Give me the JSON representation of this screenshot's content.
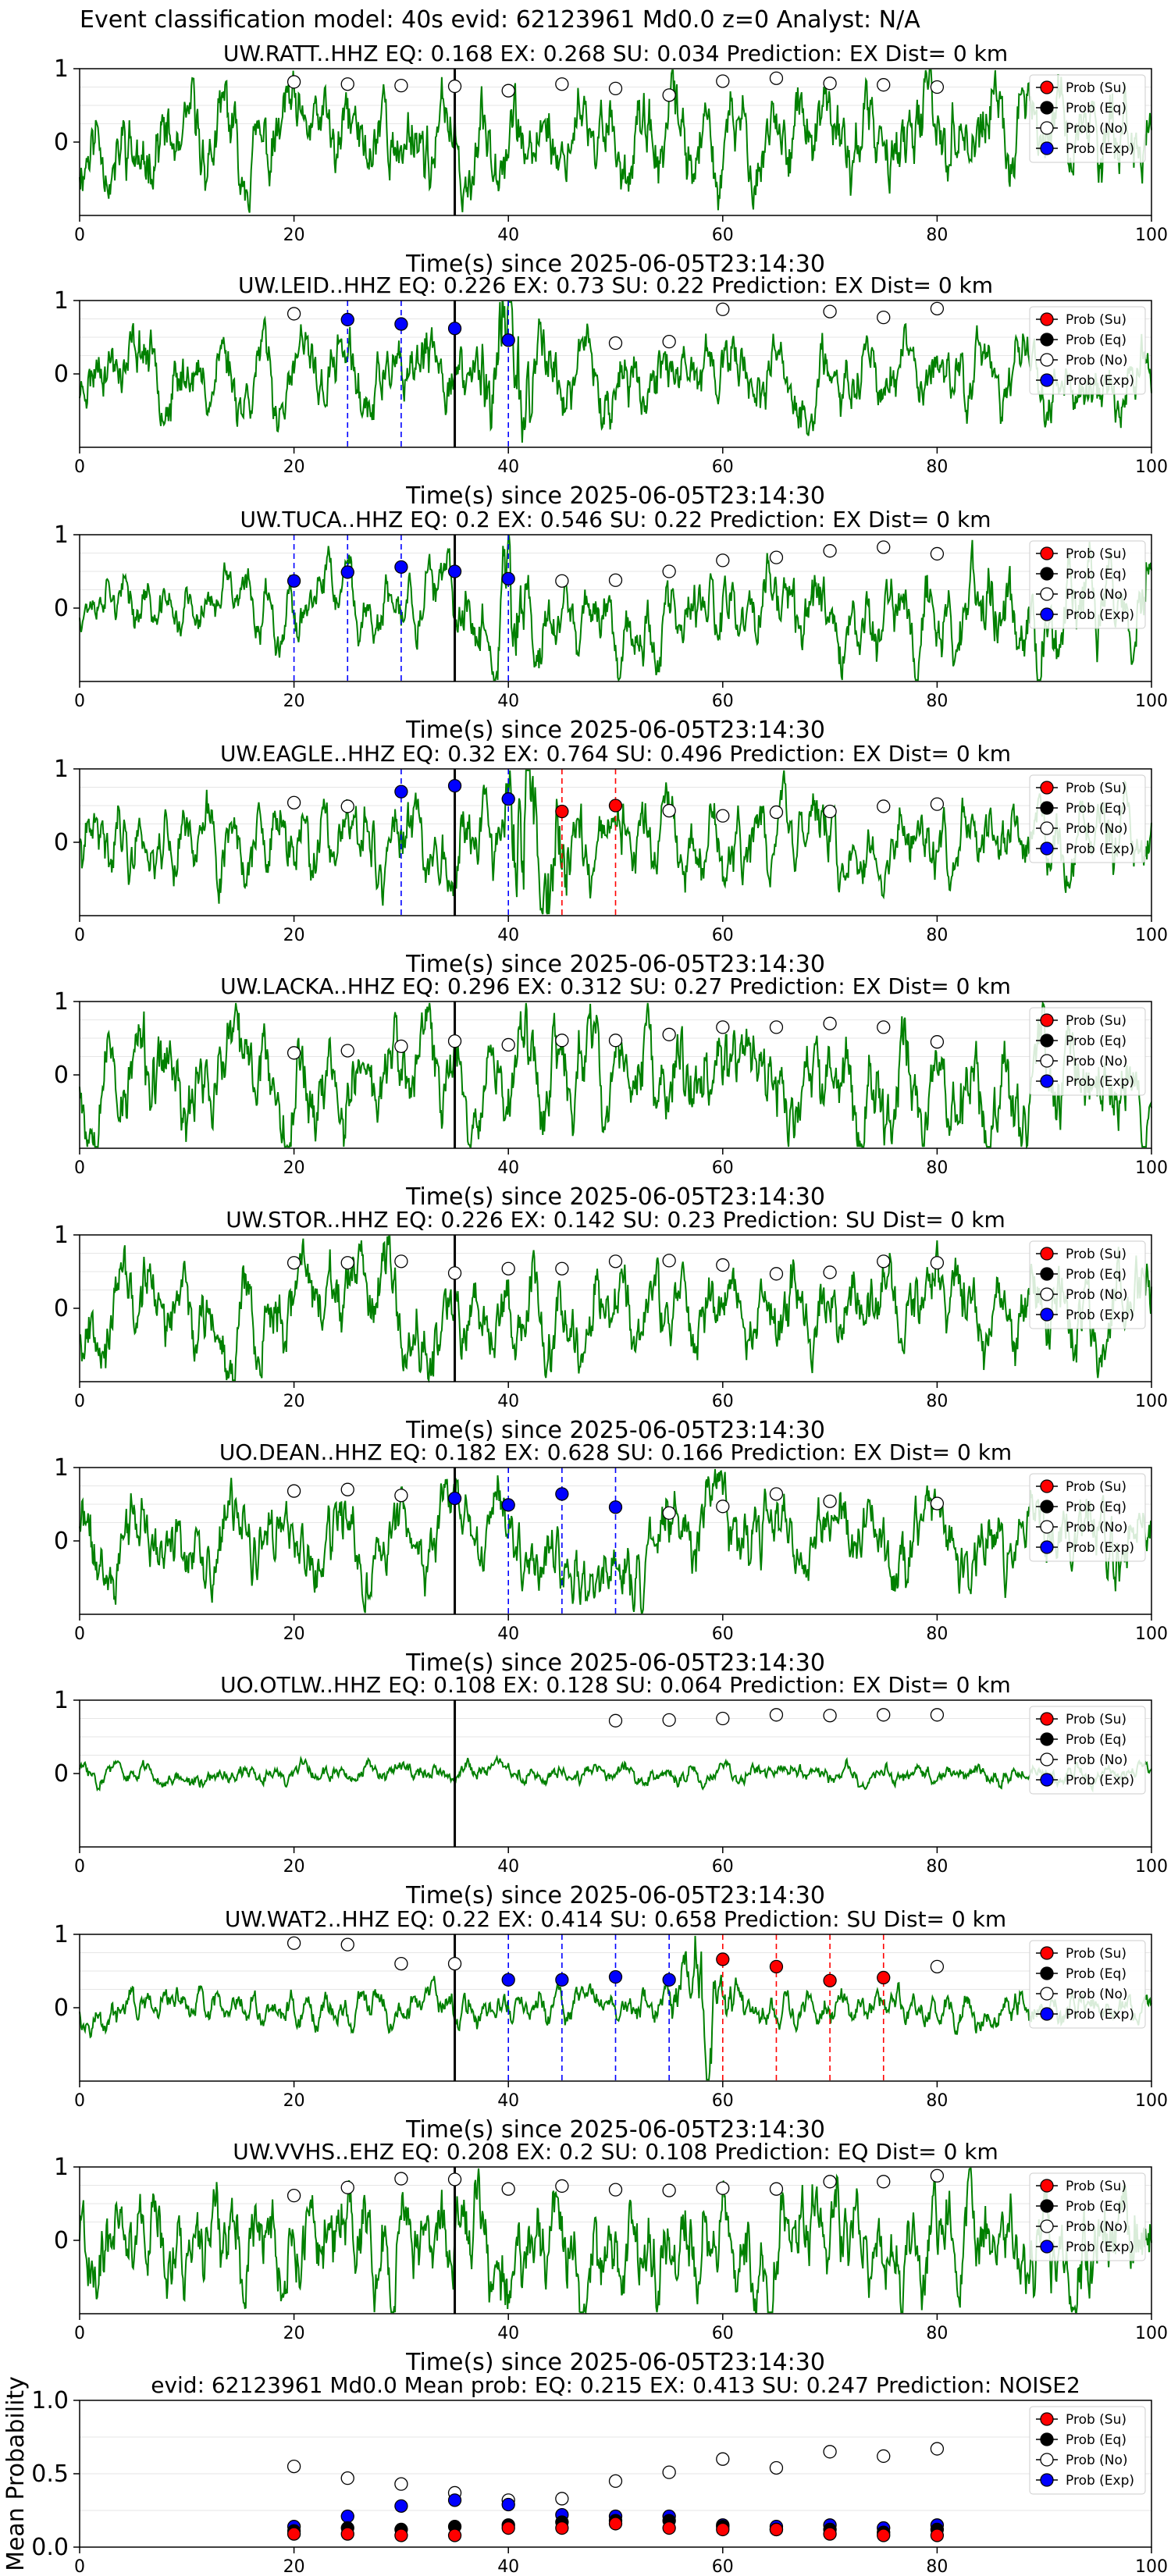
{
  "suptitle": "Event classification model: 40s evid: 62123961 Md0.0 z=0 Analyst: N/A",
  "colors": {
    "su": "#ff0000",
    "eq": "#000000",
    "no": "#ffffff",
    "exp": "#0000ff",
    "wave": "#008000",
    "pick": "#000000"
  },
  "legend_labels": [
    "Prob (Su)",
    "Prob (Eq)",
    "Prob (No)",
    "Prob (Exp)"
  ],
  "xlabel": "Time(s) since 2025-06-05T23:14:30",
  "chart_data": [
    {
      "type": "scatter",
      "title": "UW.RATT..HHZ   EQ: 0.168  EX: 0.268  SU: 0.034   Prediction: EX    Dist= 0 km",
      "xlim": [
        0,
        100
      ],
      "ylim": [
        -1,
        1
      ],
      "xticks": [
        0,
        20,
        40,
        60,
        80,
        100
      ],
      "yticks": [
        0,
        1
      ],
      "xlabel": "Time(s) since 2025-06-05T23:14:30",
      "pick_time": 35,
      "wave_amp": 0.55,
      "wave_seed": 11,
      "wave_env": "flat",
      "wave_freq": 1.0,
      "series": [
        {
          "name": "Prob (No)",
          "class": "no",
          "x": [
            20,
            25,
            30,
            35,
            40,
            45,
            50,
            55,
            60,
            65,
            70,
            75,
            80
          ],
          "y": [
            0.82,
            0.79,
            0.77,
            0.76,
            0.7,
            0.79,
            0.73,
            0.64,
            0.83,
            0.87,
            0.8,
            0.78,
            0.75
          ]
        }
      ],
      "markers": []
    },
    {
      "type": "scatter",
      "title": "UW.LEID..HHZ   EQ: 0.226  EX: 0.73  SU: 0.22   Prediction: EX    Dist= 0 km",
      "xlim": [
        0,
        100
      ],
      "ylim": [
        -1,
        1
      ],
      "xticks": [
        0,
        20,
        40,
        60,
        80,
        100
      ],
      "yticks": [
        0,
        1
      ],
      "xlabel": "Time(s) since 2025-06-05T23:14:30",
      "pick_time": 35,
      "wave_amp": 0.45,
      "wave_seed": 23,
      "wave_env": "burst40",
      "wave_freq": 0.8,
      "series": [
        {
          "name": "Prob (No)",
          "class": "no",
          "x": [
            20,
            50,
            55,
            60,
            70,
            75,
            80
          ],
          "y": [
            0.82,
            0.42,
            0.44,
            0.88,
            0.85,
            0.77,
            0.89
          ]
        },
        {
          "name": "Prob (Exp)",
          "class": "exp",
          "x": [
            25,
            30,
            35,
            40
          ],
          "y": [
            0.74,
            0.68,
            0.62,
            0.46
          ]
        }
      ],
      "markers": [
        {
          "x": 25,
          "class": "exp"
        },
        {
          "x": 30,
          "class": "exp"
        },
        {
          "x": 40,
          "class": "exp"
        }
      ]
    },
    {
      "type": "scatter",
      "title": "UW.TUCA..HHZ   EQ: 0.2  EX: 0.546  SU: 0.22   Prediction: EX    Dist= 0 km",
      "xlim": [
        0,
        100
      ],
      "ylim": [
        -1,
        1
      ],
      "xticks": [
        0,
        20,
        40,
        60,
        80,
        100
      ],
      "yticks": [
        0,
        1
      ],
      "xlabel": "Time(s) since 2025-06-05T23:14:30",
      "pick_time": 35,
      "wave_amp": 0.35,
      "wave_seed": 37,
      "wave_env": "grow",
      "wave_freq": 1.6,
      "series": [
        {
          "name": "Prob (No)",
          "class": "no",
          "x": [
            45,
            50,
            55,
            60,
            65,
            70,
            75,
            80
          ],
          "y": [
            0.37,
            0.38,
            0.5,
            0.65,
            0.69,
            0.78,
            0.83,
            0.74
          ]
        },
        {
          "name": "Prob (Exp)",
          "class": "exp",
          "x": [
            20,
            25,
            30,
            35,
            40
          ],
          "y": [
            0.37,
            0.49,
            0.56,
            0.5,
            0.4
          ]
        }
      ],
      "markers": [
        {
          "x": 20,
          "class": "exp"
        },
        {
          "x": 25,
          "class": "exp"
        },
        {
          "x": 30,
          "class": "exp"
        },
        {
          "x": 40,
          "class": "exp"
        }
      ]
    },
    {
      "type": "scatter",
      "title": "UW.EAGLE..HHZ   EQ: 0.32  EX: 0.764  SU: 0.496   Prediction: EX    Dist= 0 km",
      "xlim": [
        0,
        100
      ],
      "ylim": [
        -1,
        1
      ],
      "xticks": [
        0,
        20,
        40,
        60,
        80,
        100
      ],
      "yticks": [
        0,
        1
      ],
      "xlabel": "Time(s) since 2025-06-05T23:14:30",
      "pick_time": 35,
      "wave_amp": 0.45,
      "wave_seed": 41,
      "wave_env": "burst44",
      "wave_freq": 1.4,
      "series": [
        {
          "name": "Prob (No)",
          "class": "no",
          "x": [
            20,
            25,
            55,
            60,
            65,
            70,
            75,
            80
          ],
          "y": [
            0.54,
            0.49,
            0.43,
            0.36,
            0.41,
            0.42,
            0.49,
            0.52
          ]
        },
        {
          "name": "Prob (Exp)",
          "class": "exp",
          "x": [
            30,
            35,
            40
          ],
          "y": [
            0.69,
            0.77,
            0.59
          ]
        },
        {
          "name": "Prob (Su)",
          "class": "su",
          "x": [
            45,
            50
          ],
          "y": [
            0.42,
            0.5
          ]
        }
      ],
      "markers": [
        {
          "x": 30,
          "class": "exp"
        },
        {
          "x": 40,
          "class": "exp"
        },
        {
          "x": 45,
          "class": "su"
        },
        {
          "x": 50,
          "class": "su"
        }
      ]
    },
    {
      "type": "scatter",
      "title": "UW.LACKA..HHZ   EQ: 0.296  EX: 0.312  SU: 0.27   Prediction: EX    Dist= 0 km",
      "xlim": [
        0,
        100
      ],
      "ylim": [
        -1,
        1
      ],
      "xticks": [
        0,
        20,
        40,
        60,
        80,
        100
      ],
      "yticks": [
        0,
        1
      ],
      "xlabel": "Time(s) since 2025-06-05T23:14:30",
      "pick_time": 35,
      "wave_amp": 0.6,
      "wave_seed": 53,
      "wave_env": "flat",
      "wave_freq": 1.0,
      "series": [
        {
          "name": "Prob (No)",
          "class": "no",
          "x": [
            20,
            25,
            30,
            35,
            40,
            45,
            50,
            55,
            60,
            65,
            70,
            75,
            80
          ],
          "y": [
            0.3,
            0.33,
            0.39,
            0.46,
            0.41,
            0.47,
            0.47,
            0.55,
            0.65,
            0.65,
            0.7,
            0.65,
            0.45
          ]
        }
      ],
      "markers": []
    },
    {
      "type": "scatter",
      "title": "UW.STOR..HHZ   EQ: 0.226  EX: 0.142  SU: 0.23   Prediction: SU    Dist= 0 km",
      "xlim": [
        0,
        100
      ],
      "ylim": [
        -1,
        1
      ],
      "xticks": [
        0,
        20,
        40,
        60,
        80,
        100
      ],
      "yticks": [
        0,
        1
      ],
      "xlabel": "Time(s) since 2025-06-05T23:14:30",
      "pick_time": 35,
      "wave_amp": 0.5,
      "wave_seed": 67,
      "wave_env": "flat",
      "wave_freq": 1.1,
      "series": [
        {
          "name": "Prob (No)",
          "class": "no",
          "x": [
            20,
            25,
            30,
            35,
            40,
            45,
            50,
            55,
            60,
            65,
            70,
            75,
            80
          ],
          "y": [
            0.62,
            0.62,
            0.64,
            0.48,
            0.54,
            0.54,
            0.64,
            0.65,
            0.59,
            0.47,
            0.49,
            0.64,
            0.62
          ]
        }
      ],
      "markers": []
    },
    {
      "type": "scatter",
      "title": "UO.DEAN..HHZ   EQ: 0.182  EX: 0.628  SU: 0.166   Prediction: EX    Dist= 0 km",
      "xlim": [
        0,
        100
      ],
      "ylim": [
        -1,
        1
      ],
      "xticks": [
        0,
        20,
        40,
        60,
        80,
        100
      ],
      "yticks": [
        0,
        1
      ],
      "xlabel": "Time(s) since 2025-06-05T23:14:30",
      "pick_time": 35,
      "wave_amp": 0.5,
      "wave_seed": 71,
      "wave_env": "flat",
      "wave_freq": 0.6,
      "series": [
        {
          "name": "Prob (No)",
          "class": "no",
          "x": [
            20,
            25,
            30,
            55,
            60,
            65,
            70,
            80
          ],
          "y": [
            0.68,
            0.7,
            0.62,
            0.38,
            0.47,
            0.64,
            0.54,
            0.51
          ]
        },
        {
          "name": "Prob (Exp)",
          "class": "exp",
          "x": [
            35,
            40,
            45,
            50
          ],
          "y": [
            0.58,
            0.49,
            0.64,
            0.46
          ]
        }
      ],
      "markers": [
        {
          "x": 40,
          "class": "exp"
        },
        {
          "x": 45,
          "class": "exp"
        },
        {
          "x": 50,
          "class": "exp"
        }
      ]
    },
    {
      "type": "scatter",
      "title": "UO.OTLW..HHZ   EQ: 0.108  EX: 0.128  SU: 0.064   Prediction: EX    Dist= 0 km",
      "xlim": [
        0,
        100
      ],
      "ylim": [
        -1,
        1
      ],
      "xticks": [
        0,
        20,
        40,
        60,
        80,
        100
      ],
      "yticks": [
        0,
        1
      ],
      "xlabel": "Time(s) since 2025-06-05T23:14:30",
      "pick_time": 35,
      "wave_amp": 0.12,
      "wave_seed": 83,
      "wave_env": "flat",
      "wave_freq": 1.0,
      "series": [
        {
          "name": "Prob (No)",
          "class": "no",
          "x": [
            50,
            55,
            60,
            65,
            70,
            75,
            80
          ],
          "y": [
            0.72,
            0.73,
            0.75,
            0.8,
            0.79,
            0.8,
            0.8
          ]
        }
      ],
      "markers": []
    },
    {
      "type": "scatter",
      "title": "UW.WAT2..HHZ   EQ: 0.22  EX: 0.414  SU: 0.658   Prediction: SU    Dist= 0 km",
      "xlim": [
        0,
        100
      ],
      "ylim": [
        -1,
        1
      ],
      "xticks": [
        0,
        20,
        40,
        60,
        80,
        100
      ],
      "yticks": [
        0,
        1
      ],
      "xlabel": "Time(s) since 2025-06-05T23:14:30",
      "pick_time": 35,
      "wave_amp": 0.2,
      "wave_seed": 97,
      "wave_env": "burst58",
      "wave_freq": 1.8,
      "series": [
        {
          "name": "Prob (No)",
          "class": "no",
          "x": [
            20,
            25,
            30,
            35,
            80
          ],
          "y": [
            0.88,
            0.86,
            0.6,
            0.6,
            0.56
          ]
        },
        {
          "name": "Prob (Exp)",
          "class": "exp",
          "x": [
            40,
            45,
            50,
            55
          ],
          "y": [
            0.38,
            0.38,
            0.42,
            0.38
          ]
        },
        {
          "name": "Prob (Su)",
          "class": "su",
          "x": [
            60,
            65,
            70,
            75
          ],
          "y": [
            0.66,
            0.56,
            0.37,
            0.41
          ]
        }
      ],
      "markers": [
        {
          "x": 40,
          "class": "exp"
        },
        {
          "x": 45,
          "class": "exp"
        },
        {
          "x": 50,
          "class": "exp"
        },
        {
          "x": 55,
          "class": "exp"
        },
        {
          "x": 60,
          "class": "su"
        },
        {
          "x": 65,
          "class": "su"
        },
        {
          "x": 70,
          "class": "su"
        },
        {
          "x": 75,
          "class": "su"
        }
      ]
    },
    {
      "type": "scatter",
      "title": "UW.VVHS..EHZ   EQ: 0.208  EX: 0.2  SU: 0.108   Prediction: EQ    Dist= 0 km",
      "xlim": [
        0,
        100
      ],
      "ylim": [
        -1,
        1
      ],
      "xticks": [
        0,
        20,
        40,
        60,
        80,
        100
      ],
      "yticks": [
        0,
        1
      ],
      "xlabel": "Time(s) since 2025-06-05T23:14:30",
      "pick_time": 35,
      "wave_amp": 0.6,
      "wave_seed": 101,
      "wave_env": "flat",
      "wave_freq": 1.7,
      "series": [
        {
          "name": "Prob (No)",
          "class": "no",
          "x": [
            20,
            25,
            30,
            35,
            40,
            45,
            50,
            55,
            60,
            65,
            70,
            75,
            80
          ],
          "y": [
            0.61,
            0.72,
            0.84,
            0.83,
            0.7,
            0.74,
            0.69,
            0.68,
            0.71,
            0.7,
            0.8,
            0.8,
            0.88
          ]
        }
      ],
      "markers": []
    },
    {
      "type": "scatter",
      "title": "evid: 62123961   Md0.0   Mean prob:   EQ: 0.215  EX: 0.413  SU: 0.247   Prediction: NOISE2",
      "xlim": [
        0,
        100
      ],
      "ylim": [
        0,
        1
      ],
      "xticks": [
        0,
        20,
        40,
        60,
        80,
        100
      ],
      "yticks": [
        0.0,
        0.5,
        1.0
      ],
      "ylabel": "Mean Probability",
      "xlabel": "",
      "series": [
        {
          "name": "Prob (No)",
          "class": "no",
          "x": [
            20,
            25,
            30,
            35,
            40,
            45,
            50,
            55,
            60,
            65,
            70,
            75,
            80
          ],
          "y": [
            0.55,
            0.47,
            0.43,
            0.37,
            0.32,
            0.33,
            0.45,
            0.51,
            0.6,
            0.54,
            0.65,
            0.62,
            0.67
          ]
        },
        {
          "name": "Prob (Exp)",
          "class": "exp",
          "x": [
            20,
            25,
            30,
            35,
            40,
            45,
            50,
            55,
            60,
            65,
            70,
            75,
            80
          ],
          "y": [
            0.14,
            0.21,
            0.28,
            0.32,
            0.29,
            0.22,
            0.21,
            0.21,
            0.15,
            0.14,
            0.15,
            0.13,
            0.15
          ]
        },
        {
          "name": "Prob (Eq)",
          "class": "eq",
          "x": [
            20,
            25,
            30,
            35,
            40,
            45,
            50,
            55,
            60,
            65,
            70,
            75,
            80
          ],
          "y": [
            0.11,
            0.13,
            0.12,
            0.14,
            0.15,
            0.17,
            0.18,
            0.18,
            0.14,
            0.12,
            0.12,
            0.1,
            0.12
          ]
        },
        {
          "name": "Prob (Su)",
          "class": "su",
          "x": [
            20,
            25,
            30,
            35,
            40,
            45,
            50,
            55,
            60,
            65,
            70,
            75,
            80
          ],
          "y": [
            0.09,
            0.09,
            0.08,
            0.08,
            0.13,
            0.13,
            0.16,
            0.13,
            0.12,
            0.12,
            0.09,
            0.08,
            0.08
          ]
        }
      ],
      "markers": []
    }
  ]
}
